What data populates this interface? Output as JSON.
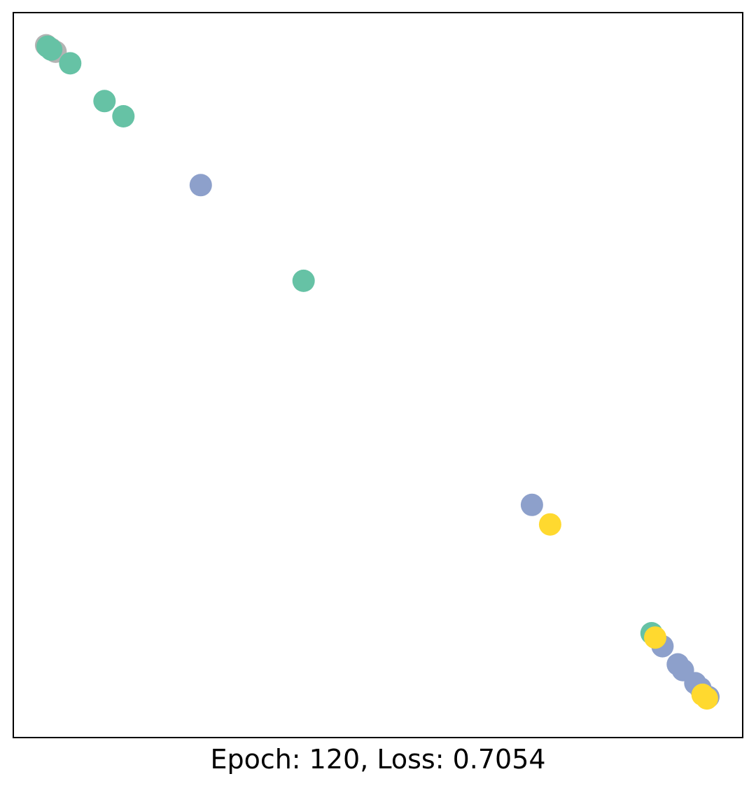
{
  "chart_data": {
    "type": "scatter",
    "title": "",
    "xlabel": "Epoch: 120, Loss: 0.7054",
    "ylabel": "",
    "xticks": [],
    "yticks": [],
    "grid": false,
    "legend": "none",
    "xlim": [
      0,
      1
    ],
    "ylim": [
      0,
      1
    ],
    "class_colors": {
      "green": "#66c2a5",
      "blue": "#8da0cb",
      "yellow": "#ffd92f",
      "gray": "#b3b3b3"
    },
    "points": [
      {
        "x": 0.045,
        "y": 0.955,
        "class": "gray"
      },
      {
        "x": 0.052,
        "y": 0.95,
        "class": "gray"
      },
      {
        "x": 0.058,
        "y": 0.946,
        "class": "gray"
      },
      {
        "x": 0.047,
        "y": 0.953,
        "class": "green"
      },
      {
        "x": 0.052,
        "y": 0.949,
        "class": "green"
      },
      {
        "x": 0.078,
        "y": 0.93,
        "class": "green"
      },
      {
        "x": 0.125,
        "y": 0.878,
        "class": "green"
      },
      {
        "x": 0.151,
        "y": 0.857,
        "class": "green"
      },
      {
        "x": 0.257,
        "y": 0.762,
        "class": "blue"
      },
      {
        "x": 0.398,
        "y": 0.63,
        "class": "green"
      },
      {
        "x": 0.711,
        "y": 0.321,
        "class": "blue"
      },
      {
        "x": 0.736,
        "y": 0.294,
        "class": "yellow"
      },
      {
        "x": 0.875,
        "y": 0.144,
        "class": "green"
      },
      {
        "x": 0.89,
        "y": 0.126,
        "class": "blue"
      },
      {
        "x": 0.911,
        "y": 0.101,
        "class": "blue"
      },
      {
        "x": 0.918,
        "y": 0.093,
        "class": "blue"
      },
      {
        "x": 0.935,
        "y": 0.075,
        "class": "blue"
      },
      {
        "x": 0.942,
        "y": 0.068,
        "class": "blue"
      },
      {
        "x": 0.953,
        "y": 0.056,
        "class": "blue"
      },
      {
        "x": 0.88,
        "y": 0.138,
        "class": "yellow"
      },
      {
        "x": 0.945,
        "y": 0.059,
        "class": "yellow"
      },
      {
        "x": 0.951,
        "y": 0.054,
        "class": "yellow"
      }
    ]
  }
}
